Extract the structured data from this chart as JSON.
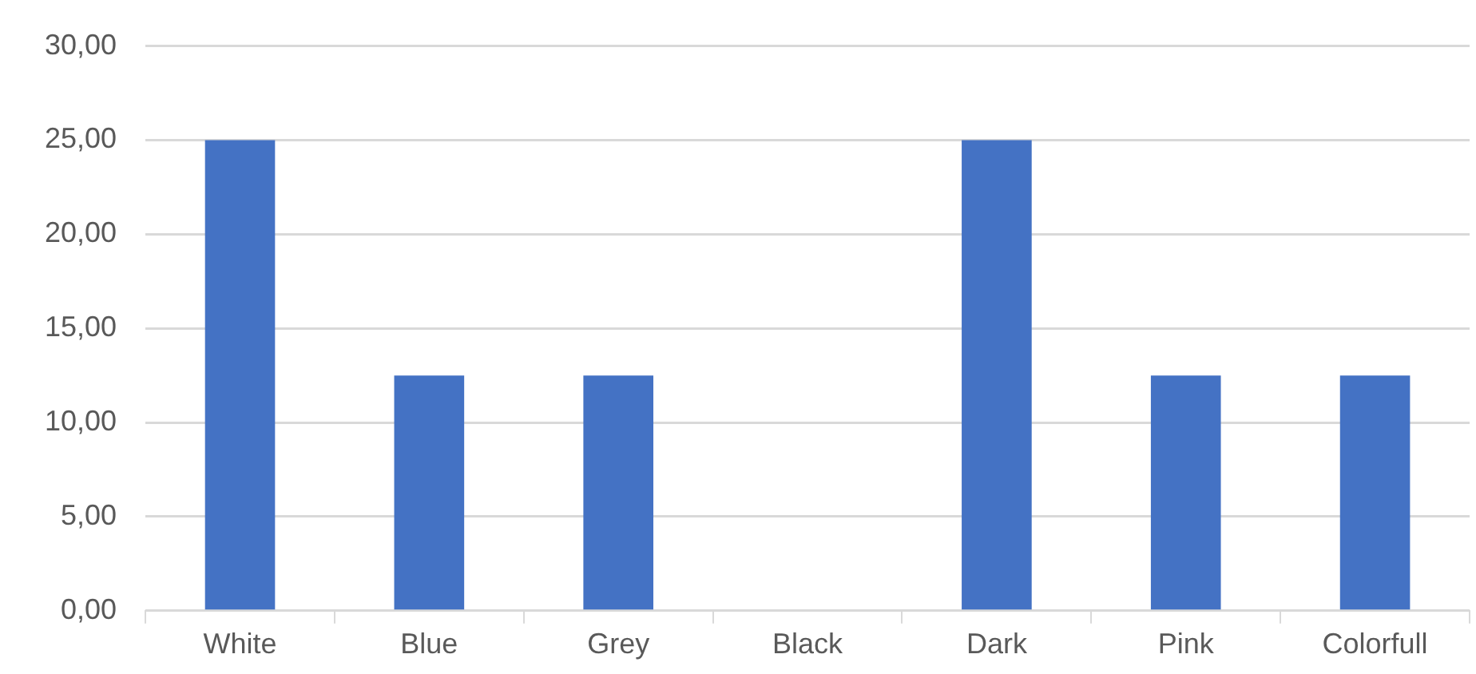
{
  "chart_data": {
    "type": "bar",
    "categories": [
      "White",
      "Blue",
      "Grey",
      "Black",
      "Dark",
      "Pink",
      "Colorfull"
    ],
    "values": [
      25,
      12.5,
      12.5,
      0,
      25,
      12.5,
      12.5
    ],
    "color": "#4472c4",
    "ylim": [
      0,
      30
    ],
    "yticks": [
      {
        "value": 0,
        "label": "0,00"
      },
      {
        "value": 5,
        "label": "5,00"
      },
      {
        "value": 10,
        "label": "10,00"
      },
      {
        "value": 15,
        "label": "15,00"
      },
      {
        "value": 20,
        "label": "20,00"
      },
      {
        "value": 25,
        "label": "25,00"
      },
      {
        "value": 30,
        "label": "30,00"
      }
    ],
    "grid": "y",
    "legend": false
  }
}
